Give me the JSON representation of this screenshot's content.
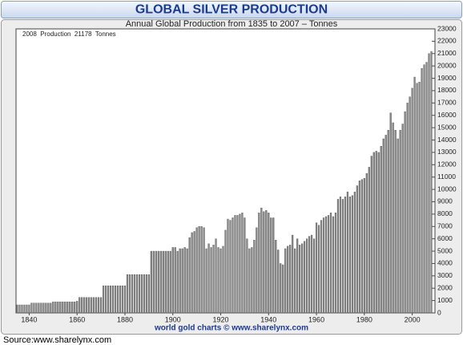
{
  "chart_data": {
    "type": "bar",
    "title": "GLOBAL SILVER PRODUCTION",
    "subtitle": "Annual Global Production from 1835 to 2007 – Tonnes",
    "annotation": "2008  Production  21178  Tonnes",
    "footer": "world gold charts © www.sharelynx.com",
    "source": "Source:www.sharelynx.com",
    "color": "#8a8a8a",
    "grid": false,
    "x": [
      1835,
      1836,
      1837,
      1838,
      1839,
      1840,
      1841,
      1842,
      1843,
      1844,
      1845,
      1846,
      1847,
      1848,
      1849,
      1850,
      1851,
      1852,
      1853,
      1854,
      1855,
      1856,
      1857,
      1858,
      1859,
      1860,
      1861,
      1862,
      1863,
      1864,
      1865,
      1866,
      1867,
      1868,
      1869,
      1870,
      1871,
      1872,
      1873,
      1874,
      1875,
      1876,
      1877,
      1878,
      1879,
      1880,
      1881,
      1882,
      1883,
      1884,
      1885,
      1886,
      1887,
      1888,
      1889,
      1890,
      1891,
      1892,
      1893,
      1894,
      1895,
      1896,
      1897,
      1898,
      1899,
      1900,
      1901,
      1902,
      1903,
      1904,
      1905,
      1906,
      1907,
      1908,
      1909,
      1910,
      1911,
      1912,
      1913,
      1914,
      1915,
      1916,
      1917,
      1918,
      1919,
      1920,
      1921,
      1922,
      1923,
      1924,
      1925,
      1926,
      1927,
      1928,
      1929,
      1930,
      1931,
      1932,
      1933,
      1934,
      1935,
      1936,
      1937,
      1938,
      1939,
      1940,
      1941,
      1942,
      1943,
      1944,
      1945,
      1946,
      1947,
      1948,
      1949,
      1950,
      1951,
      1952,
      1953,
      1954,
      1955,
      1956,
      1957,
      1958,
      1959,
      1960,
      1961,
      1962,
      1963,
      1964,
      1965,
      1966,
      1967,
      1968,
      1969,
      1970,
      1971,
      1972,
      1973,
      1974,
      1975,
      1976,
      1977,
      1978,
      1979,
      1980,
      1981,
      1982,
      1983,
      1984,
      1985,
      1986,
      1987,
      1988,
      1989,
      1990,
      1991,
      1992,
      1993,
      1994,
      1995,
      1996,
      1997,
      1998,
      1999,
      2000,
      2001,
      2002,
      2003,
      2004,
      2005,
      2006,
      2007,
      2008
    ],
    "values": [
      650,
      650,
      650,
      650,
      650,
      650,
      800,
      800,
      800,
      800,
      800,
      800,
      800,
      800,
      800,
      900,
      900,
      900,
      900,
      900,
      900,
      900,
      900,
      900,
      900,
      950,
      1250,
      1250,
      1250,
      1250,
      1250,
      1250,
      1250,
      1250,
      1250,
      1250,
      2200,
      2200,
      2200,
      2200,
      2200,
      2200,
      2200,
      2200,
      2200,
      2200,
      3100,
      3100,
      3100,
      3100,
      3100,
      3100,
      3100,
      3100,
      3100,
      3100,
      5000,
      5000,
      5000,
      5000,
      5000,
      5000,
      5000,
      5000,
      5000,
      5300,
      5300,
      5000,
      5200,
      5200,
      5300,
      5200,
      6100,
      6500,
      6600,
      6900,
      7000,
      7000,
      6900,
      5200,
      5600,
      5300,
      5500,
      6000,
      5300,
      5200,
      5400,
      6700,
      7600,
      7500,
      7700,
      7900,
      7900,
      8000,
      8100,
      7700,
      6000,
      5200,
      5300,
      5900,
      6900,
      8100,
      8500,
      8200,
      8300,
      8100,
      7700,
      7700,
      5900,
      5100,
      4000,
      3900,
      5200,
      5400,
      5500,
      6300,
      5200,
      6000,
      5500,
      5600,
      5800,
      6000,
      6200,
      6300,
      6000,
      7300,
      7100,
      7500,
      7700,
      7800,
      7900,
      8100,
      7800,
      8100,
      9200,
      9400,
      9200,
      9400,
      9800,
      9400,
      9500,
      9800,
      10300,
      10700,
      10800,
      10900,
      11300,
      11800,
      12700,
      13000,
      13100,
      13000,
      13500,
      14100,
      14400,
      14800,
      16200,
      15400,
      14800,
      14100,
      14800,
      15300,
      16300,
      17000,
      17500,
      18200,
      19100,
      18600,
      18700,
      19800,
      20100,
      20300,
      21000,
      21178
    ],
    "xlim": [
      1834.5,
      2009.5
    ],
    "xticks": [
      1840,
      1860,
      1880,
      1900,
      1920,
      1940,
      1960,
      1980,
      2000
    ],
    "ylim": [
      0,
      23000
    ],
    "yticks": [
      0,
      1000,
      2000,
      3000,
      4000,
      5000,
      6000,
      7000,
      8000,
      9000,
      10000,
      11000,
      12000,
      13000,
      14000,
      15000,
      16000,
      17000,
      18000,
      19000,
      20000,
      21000,
      22000,
      23000
    ]
  }
}
